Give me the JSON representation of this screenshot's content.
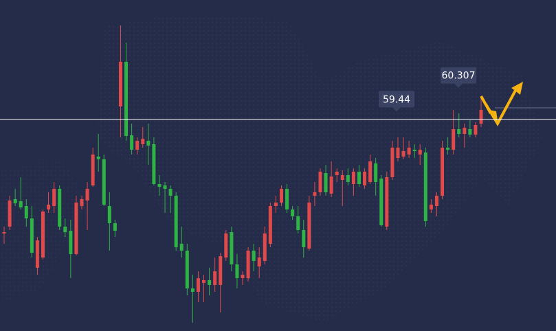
{
  "chart_data": {
    "type": "candlestick",
    "ylim": [
      51.45,
      63.5
    ],
    "up_color": "#e04a4a",
    "down_color": "#2fb344",
    "open": [
      55.0,
      55.25,
      56.25,
      56.175,
      56.0,
      55.55,
      53.75,
      54.125,
      55.875,
      56.0,
      56.625,
      55.25,
      55.1,
      54.25,
      56.0,
      56.2,
      56.75,
      57.8,
      57.7,
      56.0,
      55.375,
      59.625,
      61.25,
      58.575,
      58.05,
      58.25,
      58.375,
      58.25,
      56.8,
      56.75,
      56.625,
      56.375,
      54.625,
      54.375,
      53.0,
      52.875,
      53.2,
      53.3,
      53.125,
      53.125,
      54.125,
      55.05,
      53.875,
      53.375,
      53.375,
      54.375,
      53.8,
      54.0,
      54.625,
      56.0,
      56.125,
      56.625,
      55.875,
      55.625,
      55.125,
      54.45,
      56.375,
      56.5,
      57.2,
      56.45,
      57.125,
      56.95,
      57.125,
      56.8,
      57.25,
      56.75,
      56.875,
      57.55,
      57.0,
      55.25,
      57.05,
      57.75,
      57.8,
      57.875,
      58.05,
      57.875,
      57.95,
      55.875,
      56.0,
      56.375,
      58.125,
      58.05,
      58.8,
      58.625,
      58.8,
      58.6,
      59.0
    ],
    "high": [
      55.25,
      56.375,
      56.625,
      57.05,
      56.25,
      56.0,
      54.875,
      55.875,
      56.5,
      56.875,
      56.75,
      55.55,
      55.5,
      56.375,
      56.375,
      56.875,
      58.125,
      58.625,
      57.875,
      56.5,
      55.5,
      62.575,
      61.95,
      59.0,
      58.5,
      58.875,
      59.0,
      58.5,
      57.125,
      56.875,
      56.75,
      56.5,
      55.25,
      54.625,
      53.5,
      53.625,
      53.5,
      53.75,
      54.125,
      54.3,
      55.125,
      55.25,
      54.25,
      53.625,
      54.5,
      54.625,
      54.5,
      55.25,
      56.125,
      56.375,
      56.75,
      56.8,
      56.0,
      56.0,
      55.5,
      56.375,
      56.875,
      57.375,
      57.5,
      57.625,
      57.375,
      57.3,
      57.375,
      57.375,
      57.5,
      57.375,
      57.875,
      57.75,
      57.125,
      57.25,
      58.375,
      58.5,
      58.5,
      58.375,
      58.25,
      58.25,
      58.125,
      56.25,
      56.5,
      58.375,
      58.5,
      59.5,
      59.375,
      59.0,
      59.125,
      59.05,
      60.0
    ],
    "low": [
      54.625,
      55.125,
      56.0,
      55.875,
      55.25,
      54.125,
      53.5,
      54.05,
      55.75,
      55.75,
      55.125,
      54.875,
      53.375,
      54.2,
      55.875,
      55.125,
      56.7,
      57.25,
      56.0,
      54.375,
      54.875,
      58.5,
      58.375,
      57.875,
      57.875,
      58.125,
      57.5,
      56.75,
      56.375,
      55.75,
      55.75,
      54.375,
      54.125,
      52.75,
      51.75,
      52.5,
      52.5,
      52.75,
      52.875,
      52.125,
      54.0,
      53.625,
      53.0,
      53.125,
      53.25,
      53.625,
      53.375,
      53.875,
      54.5,
      55.75,
      56.0,
      55.75,
      55.5,
      55.0,
      54.125,
      54.375,
      56.0,
      56.375,
      56.375,
      56.325,
      56.875,
      56.0,
      56.75,
      56.375,
      56.7,
      56.625,
      56.8,
      56.375,
      55.25,
      55.125,
      56.95,
      57.625,
      57.7,
      57.75,
      57.75,
      57.5,
      55.25,
      55.75,
      55.625,
      56.25,
      57.875,
      57.875,
      58.5,
      58.125,
      58.5,
      58.5,
      58.875
    ],
    "close": [
      55.05,
      56.2,
      56.1,
      55.95,
      55.55,
      54.3,
      54.75,
      55.8,
      56.05,
      56.625,
      55.25,
      55.05,
      54.25,
      56.125,
      56.25,
      56.625,
      57.875,
      57.7,
      56.05,
      55.375,
      55.1,
      61.25,
      58.55,
      58.05,
      58.375,
      58.45,
      58.2,
      56.8,
      56.7,
      56.625,
      56.375,
      54.5,
      54.375,
      53.0,
      52.875,
      53.375,
      53.3,
      53.125,
      53.625,
      54.175,
      55.0,
      53.875,
      53.375,
      53.5,
      54.375,
      54.0,
      54.125,
      55.0,
      56.0,
      56.125,
      56.625,
      55.875,
      55.625,
      55.125,
      54.5,
      56.125,
      56.5,
      57.25,
      56.5,
      57.075,
      57.25,
      57.125,
      56.875,
      57.25,
      56.8,
      57.25,
      57.625,
      56.875,
      55.3,
      57.05,
      58.125,
      58.125,
      58.0,
      58.125,
      58.0,
      58.05,
      55.45,
      56.05,
      56.375,
      58.125,
      58.05,
      58.8,
      58.625,
      58.85,
      58.6,
      58.95,
      59.5
    ],
    "hline": 59.15,
    "annotations": [
      {
        "value": 59.44
      },
      {
        "value": 60.307
      }
    ]
  }
}
